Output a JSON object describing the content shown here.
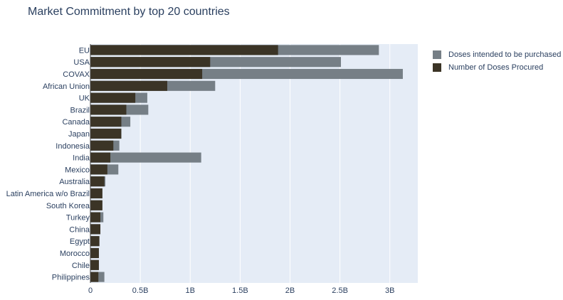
{
  "chart_data": {
    "type": "bar",
    "orientation": "horizontal",
    "barmode": "overlay",
    "title": "Market Commitment by top 20 countries",
    "xlabel": "",
    "ylabel": "",
    "xlim": [
      0,
      3.28
    ],
    "grid": true,
    "legend_position": "top-right",
    "x_ticks": [
      {
        "value": 0,
        "label": "0"
      },
      {
        "value": 0.5,
        "label": "0.5B"
      },
      {
        "value": 1,
        "label": "1B"
      },
      {
        "value": 1.5,
        "label": "1.5B"
      },
      {
        "value": 2,
        "label": "2B"
      },
      {
        "value": 2.5,
        "label": "2.5B"
      },
      {
        "value": 3,
        "label": "3B"
      }
    ],
    "categories": [
      "EU",
      "USA",
      "COVAX",
      "African Union",
      "UK",
      "Brazil",
      "Canada",
      "Japan",
      "Indonesia",
      "India",
      "Mexico",
      "Australia",
      "Latin America w/o Brazil",
      "South Korea",
      "Turkey",
      "China",
      "Egypt",
      "Morocco",
      "Chile",
      "Philippines"
    ],
    "series": [
      {
        "name": "Doses intended to be purchased",
        "color": "#767f86",
        "values": [
          2.89,
          2.51,
          3.13,
          1.25,
          0.57,
          0.58,
          0.4,
          0.31,
          0.29,
          1.11,
          0.28,
          0.15,
          0.12,
          0.12,
          0.13,
          0.1,
          0.09,
          0.085,
          0.085,
          0.14
        ]
      },
      {
        "name": "Number of Doses Procured",
        "color": "#3b3426",
        "values": [
          1.88,
          1.2,
          1.12,
          0.77,
          0.45,
          0.36,
          0.31,
          0.31,
          0.23,
          0.2,
          0.17,
          0.14,
          0.12,
          0.12,
          0.1,
          0.1,
          0.09,
          0.085,
          0.085,
          0.08
        ]
      }
    ]
  },
  "colors": {
    "plot_background": "#e5ecf6",
    "gridline": "#ffffff",
    "text": "#2a3f5f"
  }
}
